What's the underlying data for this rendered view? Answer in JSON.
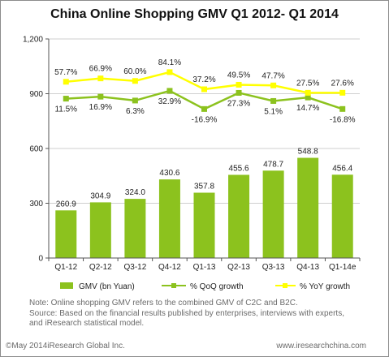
{
  "chart_data": {
    "type": "bar",
    "title": "China Online  Shopping GMV Q1 2012- Q1 2014",
    "categories": [
      "Q1-12",
      "Q2-12",
      "Q3-12",
      "Q4-12",
      "Q1-13",
      "Q2-13",
      "Q3-13",
      "Q4-13",
      "Q1-14e"
    ],
    "ylim": [
      0,
      1200
    ],
    "yticks": [
      "0",
      "300",
      "600",
      "900",
      "1,200"
    ],
    "grid": true,
    "legend_position": "bottom",
    "series": [
      {
        "name": "GMV (bn Yuan)",
        "kind": "bar",
        "color": "#8cc21e",
        "values": [
          260.9,
          304.9,
          324.0,
          430.6,
          357.8,
          455.6,
          478.7,
          548.8,
          456.4
        ],
        "labels": [
          "260.9",
          "304.9",
          "324.0",
          "430.6",
          "357.8",
          "455.6",
          "478.7",
          "548.8",
          "456.4"
        ]
      },
      {
        "name": "% QoQ growth",
        "kind": "line",
        "color": "#8cc21e",
        "values": [
          11.5,
          16.9,
          6.3,
          32.9,
          -16.9,
          27.3,
          5.1,
          14.7,
          -16.8
        ],
        "labels": [
          "11.5%",
          "16.9%",
          "6.3%",
          "32.9%",
          "-16.9%",
          "27.3%",
          "5.1%",
          "14.7%",
          "-16.8%"
        ]
      },
      {
        "name": "% YoY growth",
        "kind": "line",
        "color": "#ffff00",
        "values": [
          57.7,
          66.9,
          60.0,
          84.1,
          37.2,
          49.5,
          47.7,
          27.5,
          27.6
        ],
        "labels": [
          "57.7%",
          "66.9%",
          "60.0%",
          "84.1%",
          "37.2%",
          "49.5%",
          "47.7%",
          "27.5%",
          "27.6%"
        ]
      }
    ]
  },
  "notes": [
    "Note: Online shopping GMV refers to the combined GMV of C2C and B2C.",
    "Source: Based on the financial results published by enterprises, interviews with experts,",
    "and iResearch statistical model."
  ],
  "footer": {
    "copyright": "©May 2014iResearch Global Inc.",
    "site": "www.iresearchchina.com"
  }
}
